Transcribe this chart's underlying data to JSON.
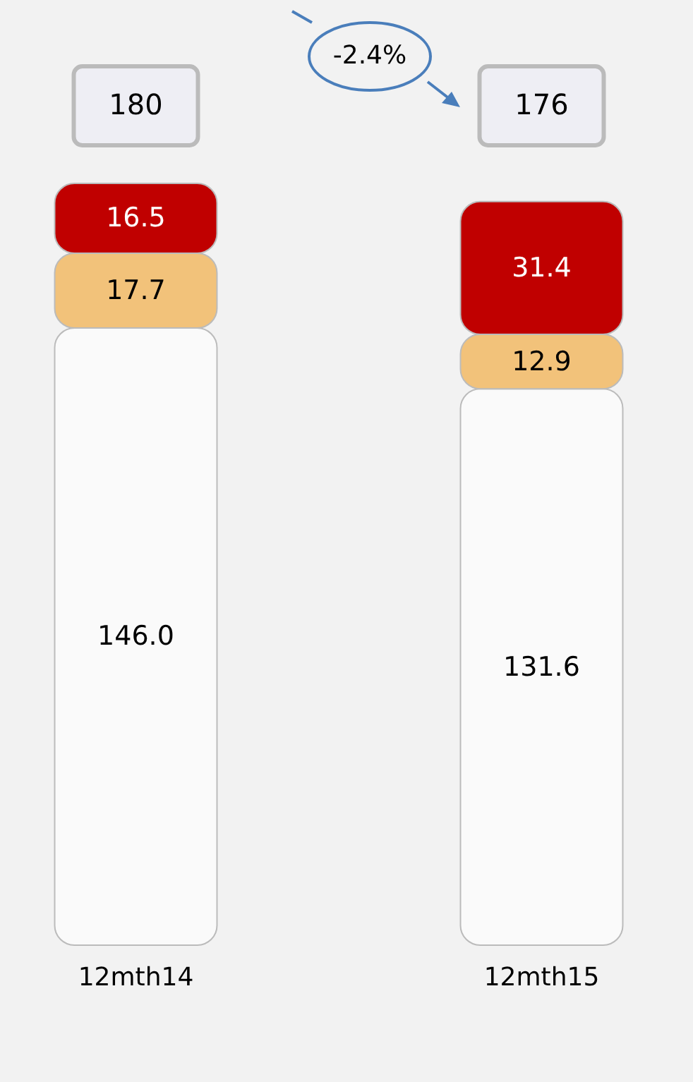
{
  "chart_data": {
    "type": "bar",
    "stacked": true,
    "categories": [
      "12mth14",
      "12mth15"
    ],
    "series": [
      {
        "color": "#fafafa",
        "values": [
          146.0,
          131.6
        ],
        "value_labels": [
          "146.0",
          "131.6"
        ]
      },
      {
        "color": "#f2c27a",
        "values": [
          17.7,
          12.9
        ],
        "value_labels": [
          "17.7",
          "12.9"
        ]
      },
      {
        "color": "#c00000",
        "values": [
          16.5,
          31.4
        ],
        "value_labels": [
          "16.5",
          "31.4"
        ]
      }
    ],
    "totals": [
      "180",
      "176"
    ],
    "annotations": [
      "-2.4%"
    ],
    "legend": false
  }
}
